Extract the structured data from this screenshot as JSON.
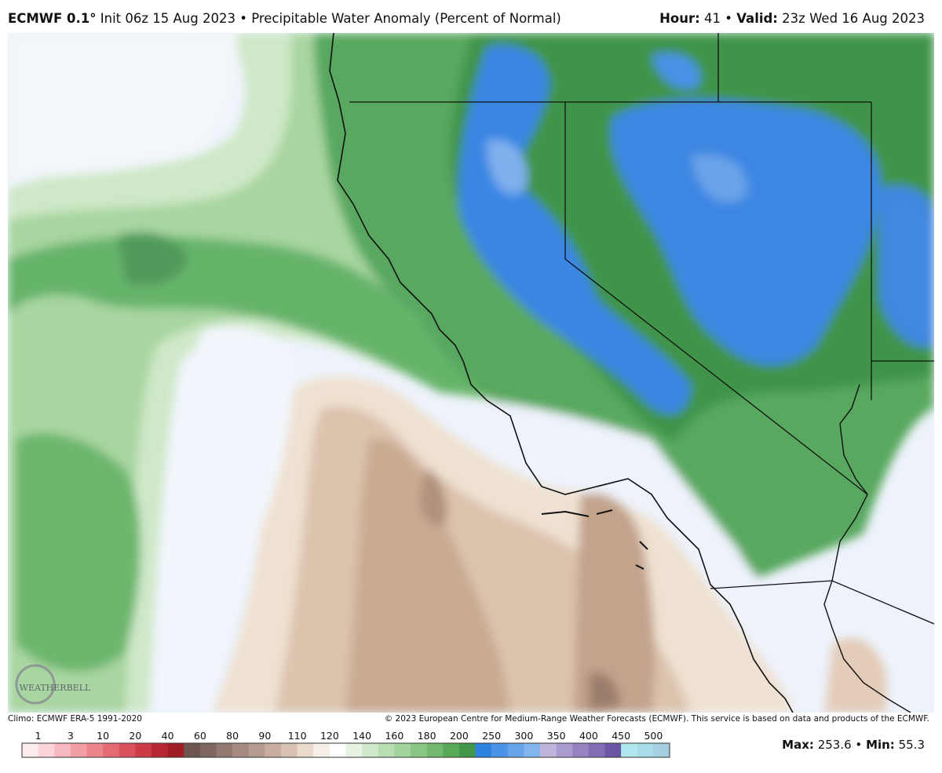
{
  "header": {
    "model": "ECMWF 0.1°",
    "description": "Init 06z 15 Aug 2023 • Precipitable Water Anomaly (Percent of Normal)",
    "hour_label": "Hour:",
    "hour": "41",
    "separator": "•",
    "valid_label": "Valid:",
    "valid": "23z Wed 16 Aug 2023"
  },
  "footer": {
    "climo": "Climo: ECMWF ERA-5 1991-2020",
    "copyright": "© 2023 European Centre for Medium-Range Weather Forecasts (ECMWF). This service is based on data and products of the ECMWF."
  },
  "logo": "WEATHERBELL",
  "colorbar": {
    "labels": [
      1,
      3,
      10,
      20,
      40,
      60,
      80,
      90,
      110,
      120,
      140,
      160,
      180,
      200,
      250,
      300,
      350,
      400,
      450,
      500
    ],
    "colors": [
      "#fdecee",
      "#fad4d8",
      "#f6b9bf",
      "#f29ea5",
      "#ec848c",
      "#e46b74",
      "#d9525c",
      "#cb3a45",
      "#b82832",
      "#a11d25",
      "#6f5550",
      "#806660",
      "#927870",
      "#a48a80",
      "#b69c90",
      "#c8ae9f",
      "#dac2b2",
      "#eadbcd",
      "#f6efe8",
      "#ffffff",
      "#e6f3e2",
      "#d0e9cb",
      "#b9deb3",
      "#a2d39c",
      "#8ac685",
      "#72b96f",
      "#5aa95b",
      "#43974a",
      "#2f83e0",
      "#4b93e6",
      "#67a4ea",
      "#83b5ee",
      "#bfb4da",
      "#aa9ccd",
      "#9584c0",
      "#806db3",
      "#6b56a6",
      "#b0e8ef",
      "#a8dde8",
      "#a6cfe2"
    ]
  },
  "stats": {
    "max_label": "Max:",
    "max": "253.6",
    "min_label": "Min:",
    "min": "55.3"
  }
}
